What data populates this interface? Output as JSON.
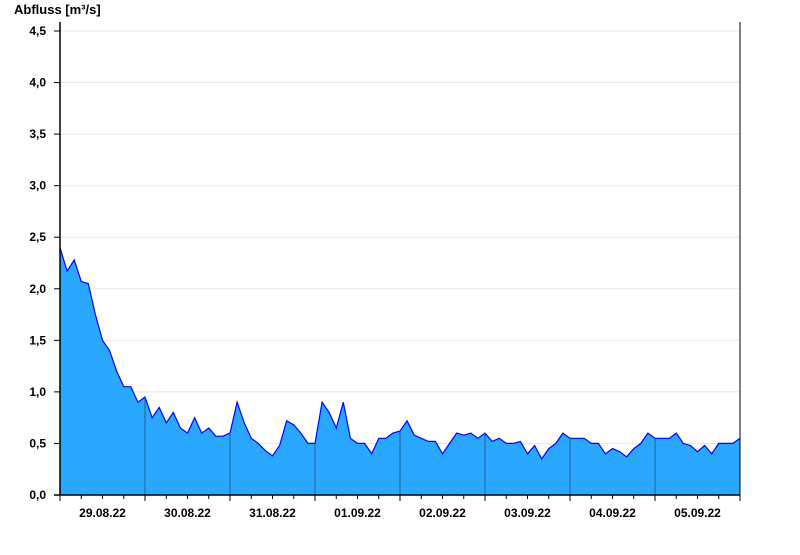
{
  "chart_data": {
    "type": "area",
    "ylabel": "Abfluss [m³/s]",
    "xlabel": "",
    "ylim": [
      0,
      4.5
    ],
    "yticks": [
      "0,0",
      "0,5",
      "1,0",
      "1,5",
      "2,0",
      "2,5",
      "3,0",
      "3,5",
      "4,0",
      "4,5"
    ],
    "xlim": [
      "29.08.22 00:00",
      "06.09.22 00:00"
    ],
    "xtick_labels": [
      "29.08.22",
      "30.08.22",
      "31.08.22",
      "01.09.22",
      "02.09.22",
      "03.09.22",
      "04.09.22",
      "05.09.22"
    ],
    "grid": true,
    "colors": {
      "fill": "#2aa8ff",
      "line": "#0000ff",
      "grid": "#e8e8e8",
      "day_divider": "#1d5f8f"
    },
    "x": [
      "29.08.22 00:00",
      "29.08.22 02:00",
      "29.08.22 04:00",
      "29.08.22 06:00",
      "29.08.22 08:00",
      "29.08.22 10:00",
      "29.08.22 12:00",
      "29.08.22 14:00",
      "29.08.22 16:00",
      "29.08.22 18:00",
      "29.08.22 20:00",
      "29.08.22 22:00",
      "30.08.22 00:00",
      "30.08.22 02:00",
      "30.08.22 04:00",
      "30.08.22 06:00",
      "30.08.22 08:00",
      "30.08.22 10:00",
      "30.08.22 12:00",
      "30.08.22 14:00",
      "30.08.22 16:00",
      "30.08.22 18:00",
      "30.08.22 20:00",
      "30.08.22 22:00",
      "31.08.22 00:00",
      "31.08.22 02:00",
      "31.08.22 04:00",
      "31.08.22 06:00",
      "31.08.22 08:00",
      "31.08.22 10:00",
      "31.08.22 12:00",
      "31.08.22 14:00",
      "31.08.22 16:00",
      "31.08.22 18:00",
      "31.08.22 20:00",
      "31.08.22 22:00",
      "01.09.22 00:00",
      "01.09.22 02:00",
      "01.09.22 04:00",
      "01.09.22 06:00",
      "01.09.22 08:00",
      "01.09.22 10:00",
      "01.09.22 12:00",
      "01.09.22 14:00",
      "01.09.22 16:00",
      "01.09.22 18:00",
      "01.09.22 20:00",
      "01.09.22 22:00",
      "02.09.22 00:00",
      "02.09.22 02:00",
      "02.09.22 04:00",
      "02.09.22 06:00",
      "02.09.22 08:00",
      "02.09.22 10:00",
      "02.09.22 12:00",
      "02.09.22 14:00",
      "02.09.22 16:00",
      "02.09.22 18:00",
      "02.09.22 20:00",
      "02.09.22 22:00",
      "03.09.22 00:00",
      "03.09.22 02:00",
      "03.09.22 04:00",
      "03.09.22 06:00",
      "03.09.22 08:00",
      "03.09.22 10:00",
      "03.09.22 12:00",
      "03.09.22 14:00",
      "03.09.22 16:00",
      "03.09.22 18:00",
      "03.09.22 20:00",
      "03.09.22 22:00",
      "04.09.22 00:00",
      "04.09.22 02:00",
      "04.09.22 04:00",
      "04.09.22 06:00",
      "04.09.22 08:00",
      "04.09.22 10:00",
      "04.09.22 12:00",
      "04.09.22 14:00",
      "04.09.22 16:00",
      "04.09.22 18:00",
      "04.09.22 20:00",
      "04.09.22 22:00",
      "05.09.22 00:00",
      "05.09.22 02:00",
      "05.09.22 04:00",
      "05.09.22 06:00",
      "05.09.22 08:00",
      "05.09.22 10:00",
      "05.09.22 12:00",
      "05.09.22 14:00",
      "05.09.22 16:00",
      "05.09.22 18:00",
      "05.09.22 20:00",
      "05.09.22 22:00",
      "06.09.22 00:00"
    ],
    "values": [
      2.4,
      2.17,
      2.28,
      2.07,
      2.05,
      1.75,
      1.5,
      1.4,
      1.2,
      1.05,
      1.05,
      0.9,
      0.95,
      0.75,
      0.85,
      0.7,
      0.8,
      0.65,
      0.6,
      0.75,
      0.6,
      0.65,
      0.57,
      0.57,
      0.6,
      0.9,
      0.7,
      0.55,
      0.5,
      0.43,
      0.38,
      0.48,
      0.72,
      0.68,
      0.6,
      0.5,
      0.5,
      0.9,
      0.8,
      0.65,
      0.9,
      0.55,
      0.5,
      0.5,
      0.4,
      0.55,
      0.55,
      0.6,
      0.62,
      0.72,
      0.58,
      0.55,
      0.52,
      0.52,
      0.4,
      0.5,
      0.6,
      0.58,
      0.6,
      0.55,
      0.6,
      0.52,
      0.55,
      0.5,
      0.5,
      0.52,
      0.4,
      0.48,
      0.35,
      0.45,
      0.5,
      0.6,
      0.55,
      0.55,
      0.55,
      0.5,
      0.5,
      0.4,
      0.45,
      0.42,
      0.37,
      0.45,
      0.5,
      0.6,
      0.55,
      0.55,
      0.55,
      0.6,
      0.5,
      0.48,
      0.42,
      0.48,
      0.4,
      0.5,
      0.5,
      0.5,
      0.55
    ]
  }
}
